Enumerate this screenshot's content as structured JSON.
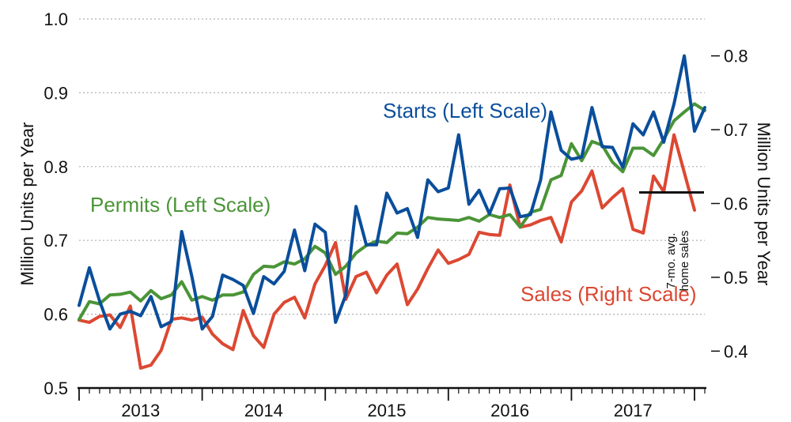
{
  "chart_data": {
    "type": "line",
    "x_start": "2013-01",
    "x_frequency": "monthly",
    "x_tick_labels": [
      "2013",
      "2014",
      "2015",
      "2016",
      "2017"
    ],
    "left_axis": {
      "label": "Million Units  per Year",
      "ylim": [
        0.5,
        1.0
      ],
      "ticks": [
        "0.5",
        "0.6",
        "0.7",
        "0.8",
        "0.9",
        "1.0"
      ]
    },
    "right_axis": {
      "label": "Million Units  per Year",
      "ylim": [
        0.35,
        0.85
      ],
      "ticks": [
        "0.4",
        "0.5",
        "0.6",
        "0.7",
        "0.8"
      ]
    },
    "grid": "horizontal dotted at left-axis ticks",
    "series": [
      {
        "name": "Starts (Left Scale)",
        "axis": "left",
        "color": "#0a4e9b",
        "values": [
          0.612,
          0.663,
          0.618,
          0.58,
          0.6,
          0.604,
          0.598,
          0.624,
          0.583,
          0.59,
          0.712,
          0.651,
          0.58,
          0.597,
          0.653,
          0.647,
          0.639,
          0.601,
          0.651,
          0.641,
          0.658,
          0.714,
          0.659,
          0.722,
          0.711,
          0.589,
          0.626,
          0.746,
          0.694,
          0.694,
          0.764,
          0.737,
          0.743,
          0.704,
          0.782,
          0.766,
          0.771,
          0.843,
          0.749,
          0.768,
          0.736,
          0.77,
          0.771,
          0.732,
          0.735,
          0.782,
          0.874,
          0.822,
          0.81,
          0.813,
          0.88,
          0.827,
          0.826,
          0.799,
          0.858,
          0.843,
          0.874,
          0.833,
          0.885,
          0.95,
          0.848,
          0.88
        ]
      },
      {
        "name": "Permits (Left Scale)",
        "axis": "left",
        "color": "#4a9437",
        "values": [
          0.593,
          0.617,
          0.614,
          0.626,
          0.627,
          0.63,
          0.618,
          0.632,
          0.621,
          0.626,
          0.644,
          0.619,
          0.624,
          0.619,
          0.626,
          0.626,
          0.63,
          0.654,
          0.665,
          0.664,
          0.671,
          0.668,
          0.675,
          0.692,
          0.683,
          0.654,
          0.665,
          0.683,
          0.693,
          0.699,
          0.697,
          0.71,
          0.709,
          0.718,
          0.731,
          0.729,
          0.728,
          0.727,
          0.731,
          0.726,
          0.735,
          0.731,
          0.735,
          0.718,
          0.738,
          0.742,
          0.782,
          0.788,
          0.831,
          0.808,
          0.834,
          0.829,
          0.806,
          0.793,
          0.825,
          0.825,
          0.815,
          0.837,
          0.862,
          0.874,
          0.885,
          0.876
        ]
      },
      {
        "name": "Sales (Right Scale)",
        "axis": "right",
        "color": "#dc4832",
        "values": [
          0.442,
          0.439,
          0.447,
          0.449,
          0.432,
          0.461,
          0.377,
          0.381,
          0.401,
          0.443,
          0.445,
          0.442,
          0.446,
          0.423,
          0.41,
          0.402,
          0.455,
          0.421,
          0.405,
          0.45,
          0.466,
          0.473,
          0.445,
          0.491,
          0.516,
          0.547,
          0.47,
          0.501,
          0.507,
          0.479,
          0.503,
          0.518,
          0.463,
          0.484,
          0.512,
          0.537,
          0.519,
          0.524,
          0.531,
          0.561,
          0.558,
          0.557,
          0.625,
          0.568,
          0.571,
          0.577,
          0.581,
          0.548,
          0.602,
          0.617,
          0.644,
          0.594,
          0.608,
          0.62,
          0.565,
          0.56,
          0.637,
          0.616,
          0.693,
          0.642,
          0.591
        ],
        "annotation_line": {
          "value": 0.615,
          "label_lines": [
            "7-mo. avg.",
            "home sales"
          ]
        }
      }
    ]
  }
}
